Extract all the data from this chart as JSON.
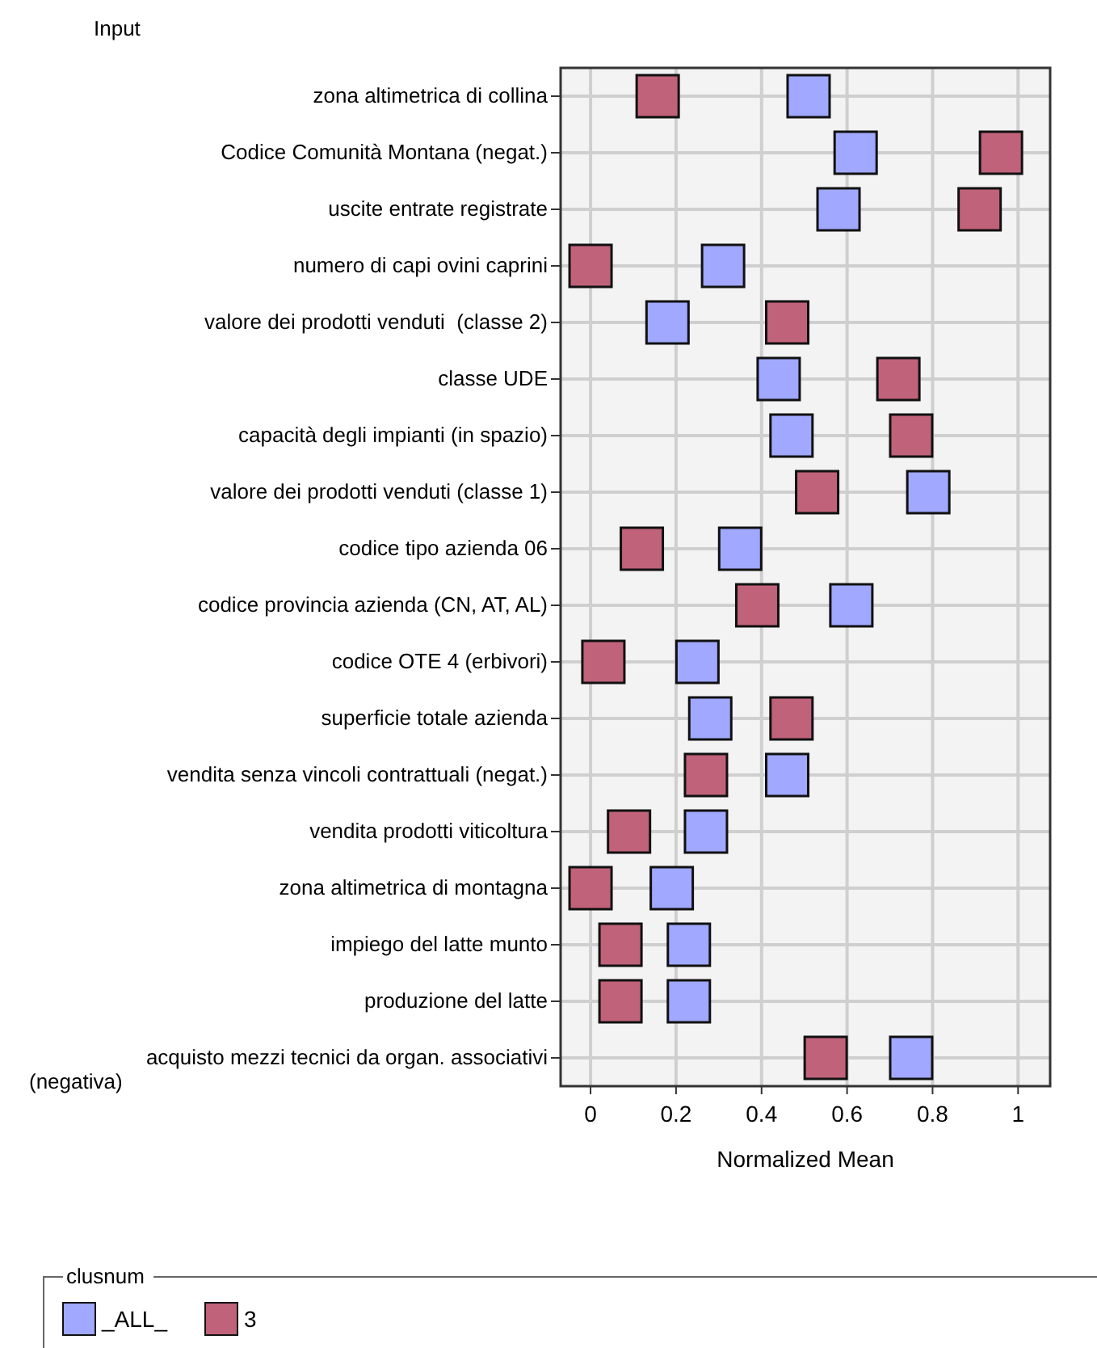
{
  "chart_data": {
    "type": "scatter",
    "ylabel": "Input",
    "xlabel": "Normalized Mean",
    "legend_title": "clusnum",
    "legend": "bottom",
    "grid": true,
    "marker": "square",
    "orientation": "horizontal",
    "categories": [
      "zona altimetrica di collina",
      "Codice Comunità Montana (negat.)",
      "uscite entrate registrate",
      "numero di capi ovini caprini",
      "valore dei prodotti venduti  (classe 2)",
      "classe UDE",
      "capacità degli impianti (in spazio)",
      "valore dei prodotti venduti (classe 1)",
      "codice tipo azienda 06",
      "codice provincia azienda (CN, AT, AL)",
      "codice OTE 4 (erbivori)",
      "superficie totale azienda",
      "vendita senza vincoli contrattuali (negat.)",
      "vendita prodotti viticoltura",
      "zona altimetrica di montagna",
      "impiego del latte munto",
      "produzione del latte",
      "acquisto mezzi tecnici da organ. associativi (negativa)"
    ],
    "xlim": [
      -0.07,
      1.075
    ],
    "xticks": [
      0,
      0.2,
      0.4,
      0.6,
      0.8,
      1
    ],
    "series": [
      {
        "name": "_ALL_",
        "color": "#a0a8ff",
        "values": [
          0.51,
          0.62,
          0.58,
          0.31,
          0.18,
          0.44,
          0.47,
          0.79,
          0.35,
          0.61,
          0.25,
          0.28,
          0.46,
          0.27,
          0.19,
          0.23,
          0.23,
          0.75
        ]
      },
      {
        "name": "3",
        "color": "#c0627a",
        "values": [
          0.157,
          0.96,
          0.91,
          0.0,
          0.46,
          0.72,
          0.75,
          0.53,
          0.12,
          0.39,
          0.03,
          0.47,
          0.27,
          0.09,
          0.0,
          0.07,
          0.07,
          0.55
        ]
      }
    ]
  }
}
